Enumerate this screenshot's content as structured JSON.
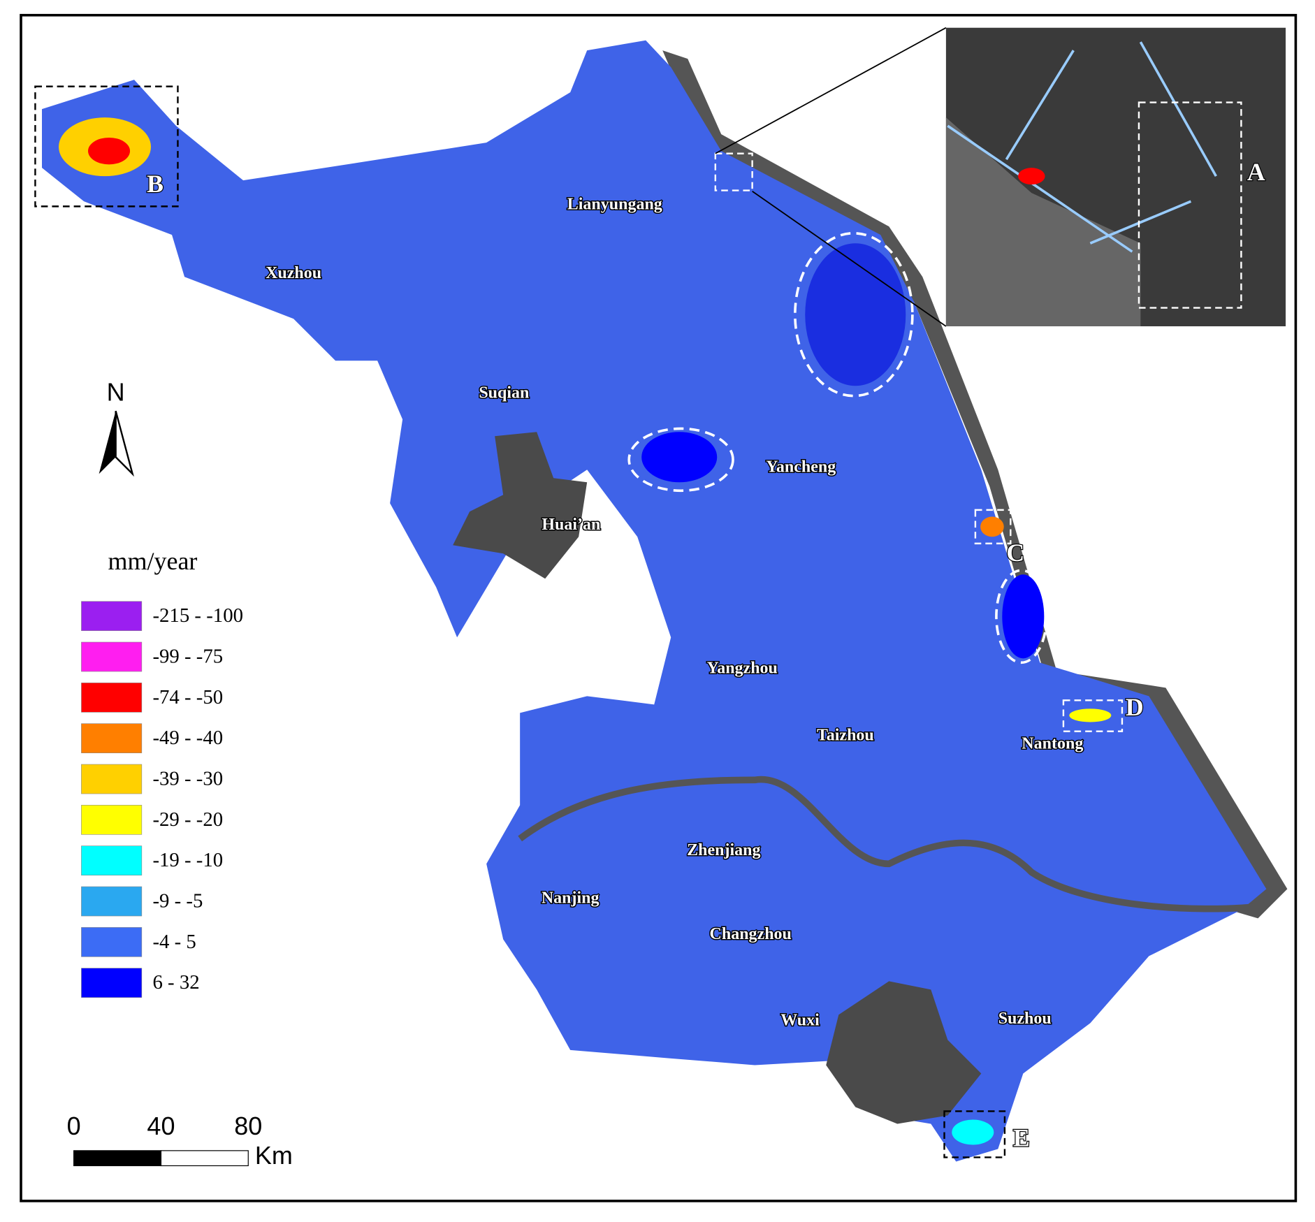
{
  "north": "N",
  "legend": {
    "title": "mm/year",
    "items": [
      {
        "label": "-215 - -100",
        "color": "#9b1ff0"
      },
      {
        "label": "-99 - -75",
        "color": "#ff1ef0"
      },
      {
        "label": "-74 - -50",
        "color": "#ff0000"
      },
      {
        "label": "-49 - -40",
        "color": "#ff7f00"
      },
      {
        "label": "-39 - -30",
        "color": "#ffd000"
      },
      {
        "label": "-29 - -20",
        "color": "#ffff00"
      },
      {
        "label": "-19 - -10",
        "color": "#00ffff"
      },
      {
        "label": "-9 - -5",
        "color": "#2aa8f0"
      },
      {
        "label": "-4 - 5",
        "color": "#3c6cf5"
      },
      {
        "label": "6 - 32",
        "color": "#0000ff"
      }
    ]
  },
  "cities": [
    "Lianyungang",
    "Xuzhou",
    "Suqian",
    "Yancheng",
    "Huai’an",
    "Yangzhou",
    "Taizhou",
    "Nantong",
    "Zhenjiang",
    "Nanjing",
    "Changzhou",
    "Wuxi",
    "Suzhou"
  ],
  "regions": [
    "A",
    "B",
    "C",
    "D",
    "E"
  ],
  "scale_bar": {
    "ticks": [
      0,
      40,
      80
    ],
    "unit": "Km"
  }
}
